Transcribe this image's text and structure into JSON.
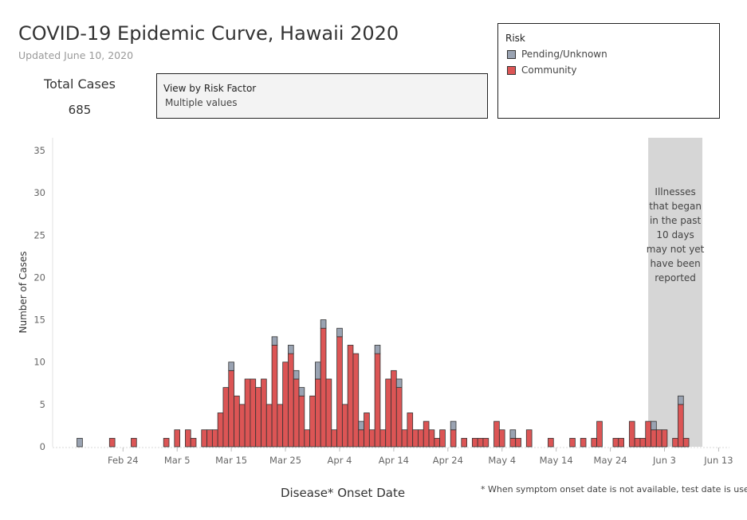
{
  "header": {
    "title": "COVID-19 Epidemic Curve, Hawaii 2020",
    "updated": "Updated June 10, 2020"
  },
  "summary": {
    "total_label": "Total Cases",
    "total_value": "685"
  },
  "filter": {
    "title": "View by Risk Factor",
    "value": "Multiple values"
  },
  "legend": {
    "title": "Risk",
    "items": [
      {
        "label": "Pending/Unknown",
        "color": "#9aa3b2"
      },
      {
        "label": "Community",
        "color": "#dc5555"
      }
    ]
  },
  "footnote": "* When symptom onset date is not available, test date is used",
  "chart_data": {
    "type": "bar",
    "stacked": true,
    "xlabel": "Disease* Onset Date",
    "ylabel": "Number of Cases",
    "ylim": [
      0,
      35
    ],
    "yticks": [
      0,
      5,
      10,
      15,
      20,
      25,
      30,
      35
    ],
    "x_start_date": "2020-02-11",
    "x_end_date": "2020-06-15",
    "xticks": [
      {
        "date": "2020-02-24",
        "label": "Feb 24"
      },
      {
        "date": "2020-03-05",
        "label": "Mar 5"
      },
      {
        "date": "2020-03-15",
        "label": "Mar 15"
      },
      {
        "date": "2020-03-25",
        "label": "Mar 25"
      },
      {
        "date": "2020-04-04",
        "label": "Apr 4"
      },
      {
        "date": "2020-04-14",
        "label": "Apr 14"
      },
      {
        "date": "2020-04-24",
        "label": "Apr 24"
      },
      {
        "date": "2020-05-04",
        "label": "May 4"
      },
      {
        "date": "2020-05-14",
        "label": "May 14"
      },
      {
        "date": "2020-05-24",
        "label": "May 24"
      },
      {
        "date": "2020-06-03",
        "label": "Jun 3"
      },
      {
        "date": "2020-06-13",
        "label": "Jun 13"
      }
    ],
    "shaded_region": {
      "start": "2020-05-31",
      "end": "2020-06-10",
      "color": "#d6d6d6",
      "lines": [
        "Illnesses",
        "that began",
        "in the past",
        "10 days",
        "may not yet",
        "have been",
        "reported"
      ]
    },
    "series": [
      {
        "name": "Community",
        "color": "#dc5555"
      },
      {
        "name": "Pending/Unknown",
        "color": "#9aa3b2"
      }
    ],
    "days": [
      {
        "date": "2020-02-16",
        "community": 0,
        "pending": 1
      },
      {
        "date": "2020-02-22",
        "community": 1,
        "pending": 0
      },
      {
        "date": "2020-02-26",
        "community": 1,
        "pending": 0
      },
      {
        "date": "2020-03-03",
        "community": 1,
        "pending": 0
      },
      {
        "date": "2020-03-05",
        "community": 2,
        "pending": 0
      },
      {
        "date": "2020-03-07",
        "community": 2,
        "pending": 0
      },
      {
        "date": "2020-03-08",
        "community": 1,
        "pending": 0
      },
      {
        "date": "2020-03-10",
        "community": 2,
        "pending": 0
      },
      {
        "date": "2020-03-11",
        "community": 2,
        "pending": 0
      },
      {
        "date": "2020-03-12",
        "community": 2,
        "pending": 0
      },
      {
        "date": "2020-03-13",
        "community": 4,
        "pending": 0
      },
      {
        "date": "2020-03-14",
        "community": 7,
        "pending": 0
      },
      {
        "date": "2020-03-15",
        "community": 9,
        "pending": 1
      },
      {
        "date": "2020-03-16",
        "community": 6,
        "pending": 0
      },
      {
        "date": "2020-03-17",
        "community": 5,
        "pending": 0
      },
      {
        "date": "2020-03-18",
        "community": 8,
        "pending": 0
      },
      {
        "date": "2020-03-19",
        "community": 8,
        "pending": 0
      },
      {
        "date": "2020-03-20",
        "community": 7,
        "pending": 0
      },
      {
        "date": "2020-03-21",
        "community": 8,
        "pending": 0
      },
      {
        "date": "2020-03-22",
        "community": 5,
        "pending": 0
      },
      {
        "date": "2020-03-23",
        "community": 12,
        "pending": 1
      },
      {
        "date": "2020-03-24",
        "community": 5,
        "pending": 0
      },
      {
        "date": "2020-03-25",
        "community": 10,
        "pending": 0
      },
      {
        "date": "2020-03-26",
        "community": 11,
        "pending": 1
      },
      {
        "date": "2020-03-27",
        "community": 8,
        "pending": 1
      },
      {
        "date": "2020-03-28",
        "community": 6,
        "pending": 1
      },
      {
        "date": "2020-03-29",
        "community": 2,
        "pending": 0
      },
      {
        "date": "2020-03-30",
        "community": 6,
        "pending": 0
      },
      {
        "date": "2020-03-31",
        "community": 8,
        "pending": 2
      },
      {
        "date": "2020-04-01",
        "community": 14,
        "pending": 1
      },
      {
        "date": "2020-04-02",
        "community": 8,
        "pending": 0
      },
      {
        "date": "2020-04-03",
        "community": 2,
        "pending": 0
      },
      {
        "date": "2020-04-04",
        "community": 13,
        "pending": 1
      },
      {
        "date": "2020-04-05",
        "community": 5,
        "pending": 0
      },
      {
        "date": "2020-04-06",
        "community": 12,
        "pending": 0
      },
      {
        "date": "2020-04-07",
        "community": 11,
        "pending": 0
      },
      {
        "date": "2020-04-08",
        "community": 2,
        "pending": 1
      },
      {
        "date": "2020-04-09",
        "community": 4,
        "pending": 0
      },
      {
        "date": "2020-04-10",
        "community": 2,
        "pending": 0
      },
      {
        "date": "2020-04-11",
        "community": 11,
        "pending": 1
      },
      {
        "date": "2020-04-12",
        "community": 2,
        "pending": 0
      },
      {
        "date": "2020-04-13",
        "community": 8,
        "pending": 0
      },
      {
        "date": "2020-04-14",
        "community": 9,
        "pending": 0
      },
      {
        "date": "2020-04-15",
        "community": 7,
        "pending": 1
      },
      {
        "date": "2020-04-16",
        "community": 2,
        "pending": 0
      },
      {
        "date": "2020-04-17",
        "community": 4,
        "pending": 0
      },
      {
        "date": "2020-04-18",
        "community": 2,
        "pending": 0
      },
      {
        "date": "2020-04-19",
        "community": 2,
        "pending": 0
      },
      {
        "date": "2020-04-20",
        "community": 3,
        "pending": 0
      },
      {
        "date": "2020-04-21",
        "community": 2,
        "pending": 0
      },
      {
        "date": "2020-04-22",
        "community": 1,
        "pending": 0
      },
      {
        "date": "2020-04-23",
        "community": 2,
        "pending": 0
      },
      {
        "date": "2020-04-25",
        "community": 2,
        "pending": 1
      },
      {
        "date": "2020-04-27",
        "community": 1,
        "pending": 0
      },
      {
        "date": "2020-04-29",
        "community": 1,
        "pending": 0
      },
      {
        "date": "2020-04-30",
        "community": 1,
        "pending": 0
      },
      {
        "date": "2020-05-01",
        "community": 1,
        "pending": 0
      },
      {
        "date": "2020-05-03",
        "community": 3,
        "pending": 0
      },
      {
        "date": "2020-05-04",
        "community": 2,
        "pending": 0
      },
      {
        "date": "2020-05-06",
        "community": 1,
        "pending": 1
      },
      {
        "date": "2020-05-07",
        "community": 1,
        "pending": 0
      },
      {
        "date": "2020-05-09",
        "community": 2,
        "pending": 0
      },
      {
        "date": "2020-05-13",
        "community": 1,
        "pending": 0
      },
      {
        "date": "2020-05-17",
        "community": 1,
        "pending": 0
      },
      {
        "date": "2020-05-19",
        "community": 1,
        "pending": 0
      },
      {
        "date": "2020-05-21",
        "community": 1,
        "pending": 0
      },
      {
        "date": "2020-05-22",
        "community": 3,
        "pending": 0
      },
      {
        "date": "2020-05-25",
        "community": 1,
        "pending": 0
      },
      {
        "date": "2020-05-26",
        "community": 1,
        "pending": 0
      },
      {
        "date": "2020-05-28",
        "community": 3,
        "pending": 0
      },
      {
        "date": "2020-05-29",
        "community": 1,
        "pending": 0
      },
      {
        "date": "2020-05-30",
        "community": 1,
        "pending": 0
      },
      {
        "date": "2020-05-31",
        "community": 3,
        "pending": 0
      },
      {
        "date": "2020-06-01",
        "community": 2,
        "pending": 1
      },
      {
        "date": "2020-06-02",
        "community": 2,
        "pending": 0
      },
      {
        "date": "2020-06-03",
        "community": 2,
        "pending": 0
      },
      {
        "date": "2020-06-05",
        "community": 1,
        "pending": 0
      },
      {
        "date": "2020-06-06",
        "community": 5,
        "pending": 1
      },
      {
        "date": "2020-06-07",
        "community": 1,
        "pending": 0
      }
    ]
  }
}
